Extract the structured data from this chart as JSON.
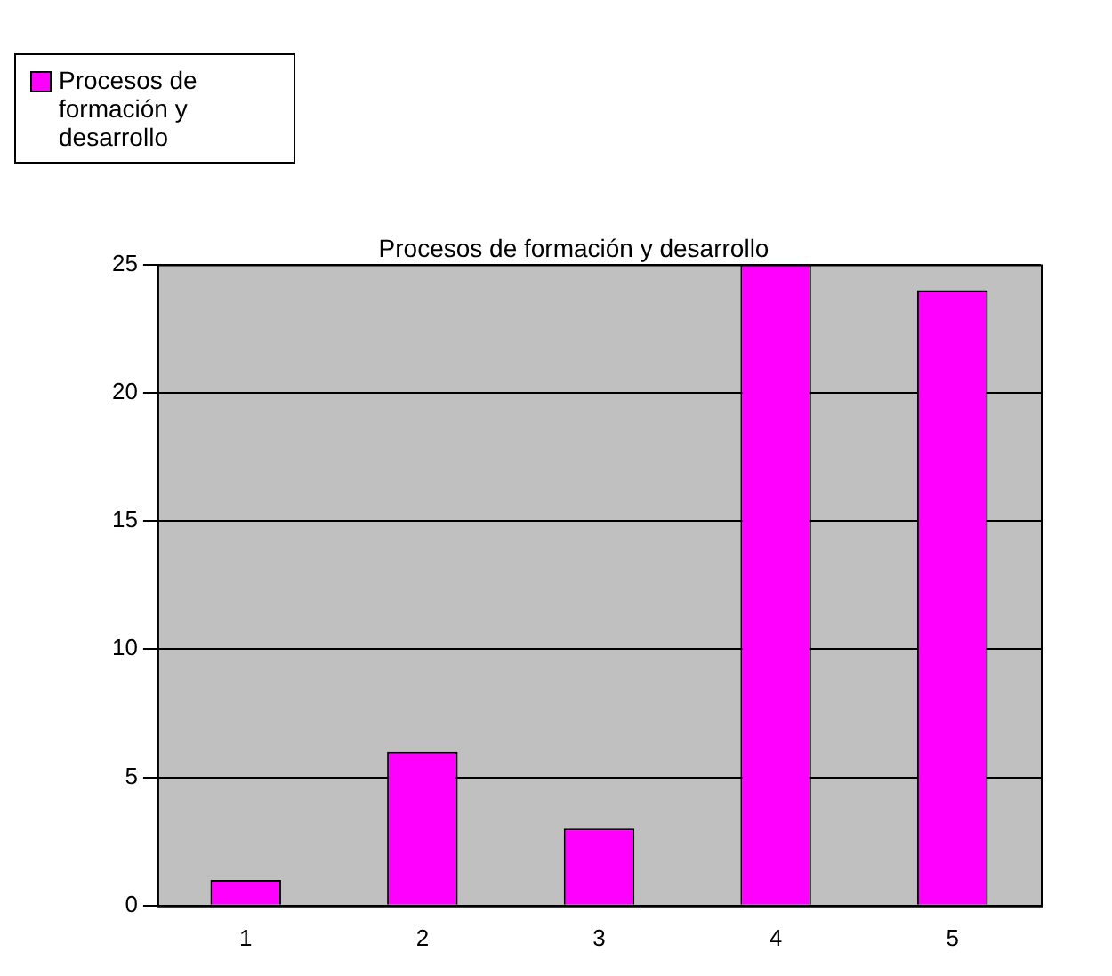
{
  "chart_data": {
    "type": "bar",
    "title": "Procesos de formación y desarrollo",
    "categories": [
      "1",
      "2",
      "3",
      "4",
      "5"
    ],
    "series": [
      {
        "name": "Procesos de formación y desarrollo",
        "color": "#ff00ff",
        "values": [
          1,
          6,
          3,
          25,
          24
        ]
      }
    ],
    "ylim": [
      0,
      25
    ],
    "yticks": [
      0,
      5,
      10,
      15,
      20,
      25
    ],
    "grid": "y",
    "legend": "top left"
  }
}
